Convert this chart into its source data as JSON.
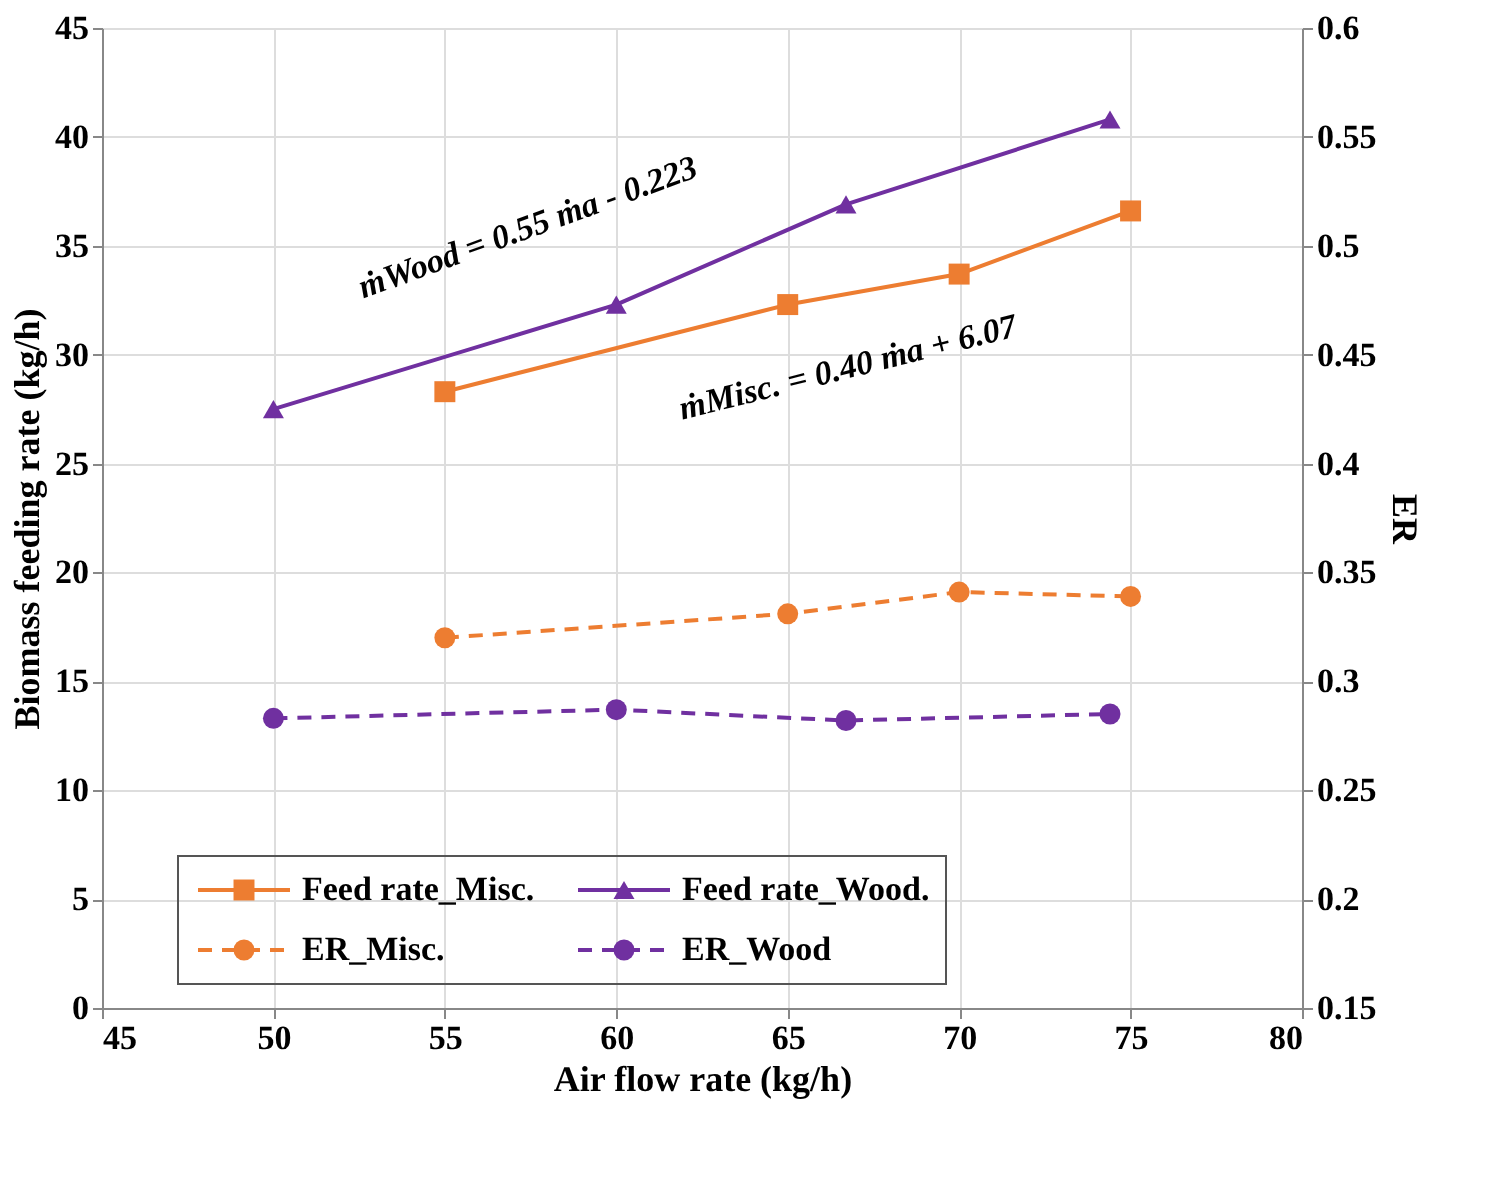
{
  "chart_data": {
    "type": "line",
    "xlabel": "Air flow rate (kg/h)",
    "ylabel": "Biomass feeding rate (kg/h)",
    "y2label": "ER",
    "xlim": [
      45,
      80
    ],
    "xticks": [
      45,
      50,
      55,
      60,
      65,
      70,
      75,
      80
    ],
    "ylim": [
      0,
      45
    ],
    "yticks": [
      0,
      5,
      10,
      15,
      20,
      25,
      30,
      35,
      40,
      45
    ],
    "y2lim": [
      0.15,
      0.6
    ],
    "y2ticks": [
      0.15,
      0.2,
      0.25,
      0.3,
      0.35,
      0.4,
      0.45,
      0.5,
      0.55,
      0.6
    ],
    "grid": true,
    "legend": "bottom",
    "series": [
      {
        "name": "Feed rate_Misc.",
        "color": "#ed7d31",
        "marker": "square",
        "line_style": "solid",
        "x": [
          55,
          65,
          70,
          75
        ],
        "values": [
          28.3,
          32.3,
          33.7,
          36.6
        ]
      },
      {
        "name": "Feed rate_Wood.",
        "color": "#7030a0",
        "marker": "triangle",
        "line_style": "solid",
        "x": [
          50,
          60,
          66.7,
          74.4
        ],
        "values": [
          27.5,
          32.3,
          36.9,
          40.8
        ]
      },
      {
        "name": "ER_Misc.",
        "color": "#ed7d31",
        "marker": "circle",
        "line_style": "dashed",
        "axis": "y2",
        "x": [
          55,
          65,
          70,
          75
        ],
        "values": [
          0.32,
          0.331,
          0.341,
          0.339
        ]
      },
      {
        "name": "ER_Wood",
        "color": "#7030a0",
        "marker": "circle",
        "line_style": "dashed",
        "axis": "y2",
        "x": [
          50,
          60,
          66.7,
          74.4
        ],
        "values": [
          0.283,
          0.287,
          0.282,
          0.285
        ]
      }
    ],
    "annotations": [
      "ṁWood = 0.55 ṁa - 0.223",
      "ṁMisc. = 0.40 ṁa + 6.07"
    ]
  }
}
